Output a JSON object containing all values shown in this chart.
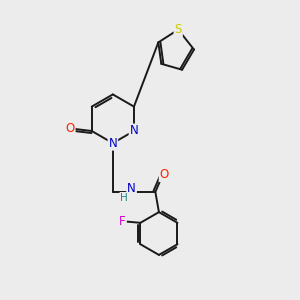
{
  "background_color": "#ececec",
  "bond_color": "#1a1a1a",
  "atom_colors": {
    "N": "#0000cc",
    "O": "#ff2200",
    "S": "#cccc00",
    "F": "#cc00cc",
    "H": "#228888",
    "C": "#1a1a1a"
  }
}
